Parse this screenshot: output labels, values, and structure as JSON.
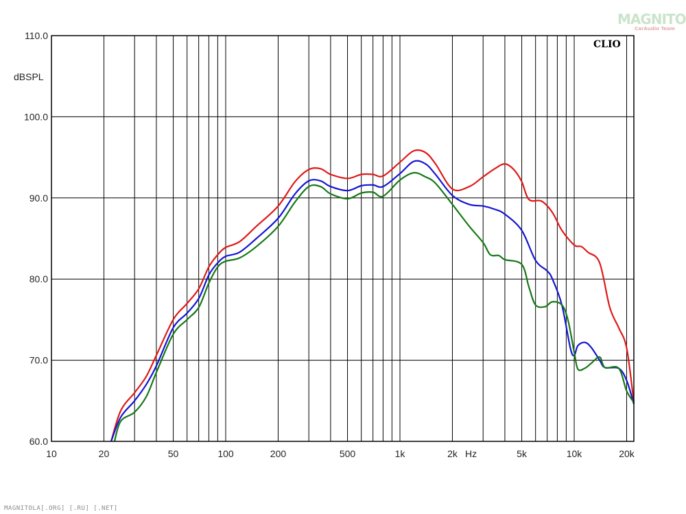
{
  "chart_data": {
    "type": "line",
    "title": "",
    "brand_label": "CLIO",
    "xlabel": "Hz",
    "ylabel": "dBSPL",
    "x_scale": "log",
    "xlim": [
      10,
      22000
    ],
    "ylim": [
      60,
      110
    ],
    "grid": true,
    "legend": "none",
    "y_ticks": [
      "60.0",
      "70.0",
      "80.0",
      "90.0",
      "100.0",
      "110.0"
    ],
    "x_tick_labels": [
      {
        "value": 10,
        "label": "10"
      },
      {
        "value": 20,
        "label": "20"
      },
      {
        "value": 50,
        "label": "50"
      },
      {
        "value": 100,
        "label": "100"
      },
      {
        "value": 200,
        "label": "200"
      },
      {
        "value": 500,
        "label": "500"
      },
      {
        "value": 1000,
        "label": "1k"
      },
      {
        "value": 2000,
        "label": "2k"
      },
      {
        "value": 5000,
        "label": "5k"
      },
      {
        "value": 10000,
        "label": "10k"
      },
      {
        "value": 20000,
        "label": "20k"
      }
    ],
    "x_gridlines": [
      20,
      30,
      40,
      50,
      60,
      70,
      80,
      90,
      100,
      200,
      300,
      400,
      500,
      600,
      700,
      800,
      900,
      1000,
      2000,
      3000,
      4000,
      5000,
      6000,
      7000,
      8000,
      9000,
      10000,
      20000
    ],
    "series": [
      {
        "color": "#e01818",
        "points": [
          [
            22,
            60
          ],
          [
            25,
            63.8
          ],
          [
            30,
            66
          ],
          [
            35,
            68
          ],
          [
            40,
            70.6
          ],
          [
            50,
            75
          ],
          [
            60,
            77
          ],
          [
            70,
            78.8
          ],
          [
            80,
            81.5
          ],
          [
            90,
            83
          ],
          [
            100,
            83.9
          ],
          [
            120,
            84.6
          ],
          [
            150,
            86.5
          ],
          [
            200,
            89
          ],
          [
            250,
            92
          ],
          [
            300,
            93.5
          ],
          [
            350,
            93.6
          ],
          [
            400,
            92.9
          ],
          [
            500,
            92.4
          ],
          [
            600,
            92.9
          ],
          [
            700,
            92.9
          ],
          [
            800,
            92.7
          ],
          [
            1000,
            94.4
          ],
          [
            1200,
            95.8
          ],
          [
            1400,
            95.6
          ],
          [
            1600,
            94.2
          ],
          [
            2000,
            91.1
          ],
          [
            2500,
            91.4
          ],
          [
            3000,
            92.6
          ],
          [
            3500,
            93.6
          ],
          [
            4000,
            94.2
          ],
          [
            4500,
            93.5
          ],
          [
            5000,
            92
          ],
          [
            5500,
            89.8
          ],
          [
            6500,
            89.6
          ],
          [
            7500,
            88.2
          ],
          [
            8500,
            86
          ],
          [
            10000,
            84.2
          ],
          [
            11000,
            84
          ],
          [
            12000,
            83.3
          ],
          [
            14000,
            82
          ],
          [
            16000,
            76.5
          ],
          [
            18000,
            74
          ],
          [
            20000,
            71.5
          ],
          [
            22000,
            64.8
          ]
        ]
      },
      {
        "color": "#1414d2",
        "points": [
          [
            22,
            60
          ],
          [
            25,
            63
          ],
          [
            30,
            65
          ],
          [
            35,
            67
          ],
          [
            40,
            69.3
          ],
          [
            50,
            74
          ],
          [
            60,
            75.8
          ],
          [
            70,
            77.6
          ],
          [
            80,
            80.5
          ],
          [
            90,
            82
          ],
          [
            100,
            82.8
          ],
          [
            120,
            83.3
          ],
          [
            150,
            85
          ],
          [
            200,
            87.5
          ],
          [
            250,
            90.5
          ],
          [
            300,
            92.1
          ],
          [
            350,
            92.1
          ],
          [
            400,
            91.4
          ],
          [
            500,
            90.9
          ],
          [
            600,
            91.5
          ],
          [
            700,
            91.6
          ],
          [
            800,
            91.4
          ],
          [
            1000,
            93
          ],
          [
            1200,
            94.5
          ],
          [
            1400,
            94.2
          ],
          [
            1600,
            92.9
          ],
          [
            2000,
            90.3
          ],
          [
            2500,
            89.2
          ],
          [
            3000,
            89
          ],
          [
            3500,
            88.6
          ],
          [
            4000,
            88
          ],
          [
            5000,
            86
          ],
          [
            6000,
            82.3
          ],
          [
            7000,
            81
          ],
          [
            7500,
            80
          ],
          [
            8500,
            76.8
          ],
          [
            9500,
            71.5
          ],
          [
            10000,
            70.6
          ],
          [
            10500,
            71.8
          ],
          [
            11500,
            72.2
          ],
          [
            12500,
            71.6
          ],
          [
            14000,
            70
          ],
          [
            15000,
            69.1
          ],
          [
            18000,
            69
          ],
          [
            20000,
            67.5
          ],
          [
            22000,
            64.6
          ]
        ]
      },
      {
        "color": "#147814",
        "points": [
          [
            23,
            60
          ],
          [
            25,
            62.5
          ],
          [
            30,
            63.6
          ],
          [
            35,
            65.5
          ],
          [
            40,
            68.5
          ],
          [
            50,
            73.2
          ],
          [
            60,
            75
          ],
          [
            70,
            76.5
          ],
          [
            80,
            79.5
          ],
          [
            90,
            81.5
          ],
          [
            100,
            82.2
          ],
          [
            120,
            82.6
          ],
          [
            150,
            84
          ],
          [
            200,
            86.5
          ],
          [
            250,
            89.5
          ],
          [
            300,
            91.4
          ],
          [
            350,
            91.4
          ],
          [
            400,
            90.5
          ],
          [
            500,
            89.9
          ],
          [
            600,
            90.6
          ],
          [
            700,
            90.7
          ],
          [
            800,
            90.2
          ],
          [
            1000,
            92.2
          ],
          [
            1200,
            93.1
          ],
          [
            1400,
            92.6
          ],
          [
            1600,
            91.8
          ],
          [
            2000,
            89.2
          ],
          [
            2500,
            86.5
          ],
          [
            3000,
            84.5
          ],
          [
            3300,
            83
          ],
          [
            3700,
            82.9
          ],
          [
            4000,
            82.4
          ],
          [
            5000,
            81.8
          ],
          [
            5500,
            79
          ],
          [
            6000,
            76.8
          ],
          [
            6800,
            76.6
          ],
          [
            7500,
            77.2
          ],
          [
            8500,
            76.8
          ],
          [
            9200,
            75
          ],
          [
            10000,
            71
          ],
          [
            10500,
            68.9
          ],
          [
            11500,
            69
          ],
          [
            12500,
            69.6
          ],
          [
            14000,
            70.4
          ],
          [
            15000,
            69.1
          ],
          [
            18000,
            69
          ],
          [
            20000,
            66.2
          ],
          [
            22000,
            64.8
          ]
        ]
      }
    ]
  },
  "footer": "MAGNITOLA[.ORG] [.RU] [.NET]",
  "logo": {
    "main": "MAGNITOLA",
    "sub": "CarAudio Team"
  }
}
